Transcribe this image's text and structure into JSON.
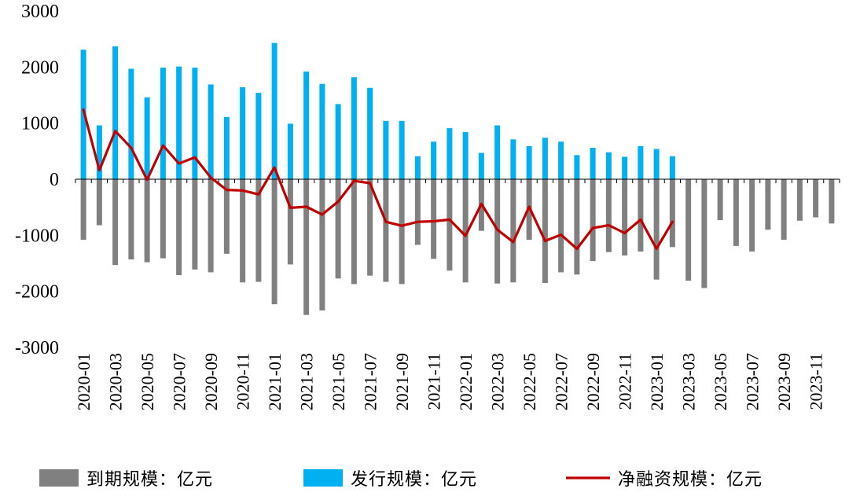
{
  "chart_data": {
    "type": "bar",
    "ylim": [
      -3000,
      3000
    ],
    "y_ticks": [
      "3000",
      "2000",
      "1000",
      "0",
      "-1000",
      "-2000",
      "-3000"
    ],
    "categories": [
      "2020-01",
      "2020-02",
      "2020-03",
      "2020-04",
      "2020-05",
      "2020-06",
      "2020-07",
      "2020-08",
      "2020-09",
      "2020-10",
      "2020-11",
      "2020-12",
      "2021-01",
      "2021-02",
      "2021-03",
      "2021-04",
      "2021-05",
      "2021-06",
      "2021-07",
      "2021-08",
      "2021-09",
      "2021-10",
      "2021-11",
      "2021-12",
      "2022-01",
      "2022-02",
      "2022-03",
      "2022-04",
      "2022-05",
      "2022-06",
      "2022-07",
      "2022-08",
      "2022-09",
      "2022-10",
      "2022-11",
      "2022-12",
      "2023-01",
      "2023-02",
      "2023-03",
      "2023-04",
      "2023-05",
      "2023-06",
      "2023-07",
      "2023-08",
      "2023-09",
      "2023-10",
      "2023-11",
      "2023-12"
    ],
    "x_tick_labels": [
      "2020-01",
      "2020-03",
      "2020-05",
      "2020-07",
      "2020-09",
      "2020-11",
      "2021-01",
      "2021-03",
      "2021-05",
      "2021-07",
      "2021-09",
      "2021-11",
      "2022-01",
      "2022-03",
      "2022-05",
      "2022-07",
      "2022-09",
      "2022-11",
      "2023-01",
      "2023-03",
      "2023-05",
      "2023-07",
      "2023-09",
      "2023-11"
    ],
    "legend": {
      "position": "bottom",
      "entries": [
        "到期规模：亿元",
        "发行规模：亿元",
        "净融资规模：亿元"
      ]
    },
    "series": [
      {
        "name": "到期规模：亿元",
        "kind": "bar",
        "color": "#808080",
        "values": [
          -1080,
          -820,
          -1530,
          -1430,
          -1480,
          -1410,
          -1710,
          -1610,
          -1660,
          -1330,
          -1840,
          -1830,
          -2230,
          -1520,
          -2420,
          -2340,
          -1770,
          -1870,
          -1720,
          -1830,
          -1870,
          -1170,
          -1420,
          -1630,
          -1840,
          -920,
          -1860,
          -1840,
          -1080,
          -1850,
          -1660,
          -1700,
          -1460,
          -1300,
          -1360,
          -1290,
          -1790,
          -1210,
          -1810,
          -1940,
          -730,
          -1190,
          -1290,
          -900,
          -1080,
          -740,
          -680,
          -790
        ]
      },
      {
        "name": "发行规模：亿元",
        "kind": "bar",
        "color": "#00B0F0",
        "values": [
          2310,
          960,
          2370,
          1970,
          1460,
          1990,
          2010,
          1990,
          1690,
          1110,
          1640,
          1540,
          2430,
          990,
          1920,
          1700,
          1340,
          1820,
          1630,
          1040,
          1040,
          410,
          670,
          910,
          840,
          470,
          960,
          710,
          590,
          740,
          670,
          430,
          560,
          480,
          400,
          590,
          540,
          410,
          null,
          null,
          null,
          null,
          null,
          null,
          null,
          null,
          null,
          null
        ]
      },
      {
        "name": "净融资规模：亿元",
        "kind": "line",
        "color": "#C00000",
        "values": [
          1240,
          160,
          860,
          560,
          -10,
          600,
          280,
          390,
          30,
          -190,
          -200,
          -270,
          210,
          -510,
          -490,
          -630,
          -400,
          -30,
          -70,
          -760,
          -830,
          -760,
          -750,
          -720,
          -1010,
          -440,
          -900,
          -1120,
          -490,
          -1100,
          -990,
          -1240,
          -870,
          -820,
          -960,
          -720,
          -1240,
          -760,
          null,
          null,
          null,
          null,
          null,
          null,
          null,
          null,
          null,
          null
        ]
      }
    ]
  }
}
